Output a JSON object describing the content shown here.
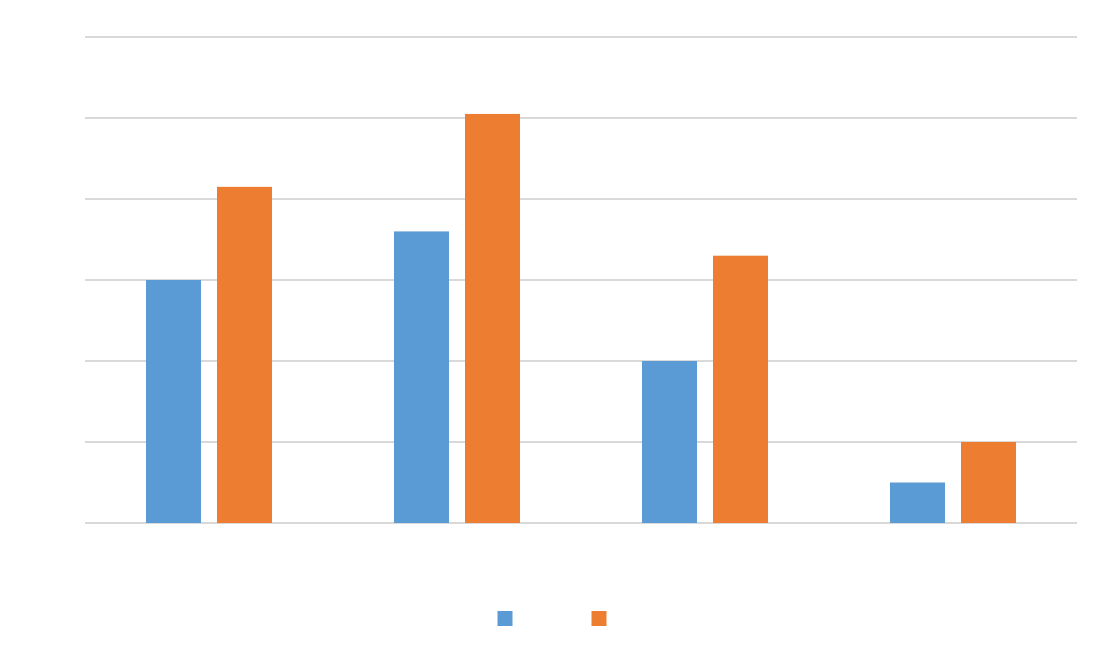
{
  "chart_data": {
    "type": "bar",
    "title": "",
    "xlabel": "",
    "ylabel": "",
    "categories": [
      "",
      "",
      "",
      ""
    ],
    "series": [
      {
        "color": "#5b9bd5",
        "values": [
          3.0,
          3.6,
          2.0,
          0.5
        ]
      },
      {
        "color": "#ed7d31",
        "values": [
          4.15,
          5.05,
          3.3,
          1.0
        ]
      }
    ],
    "ylim": [
      0,
      6
    ],
    "ytick_step": 1,
    "grid": true,
    "legend": "bottom"
  }
}
